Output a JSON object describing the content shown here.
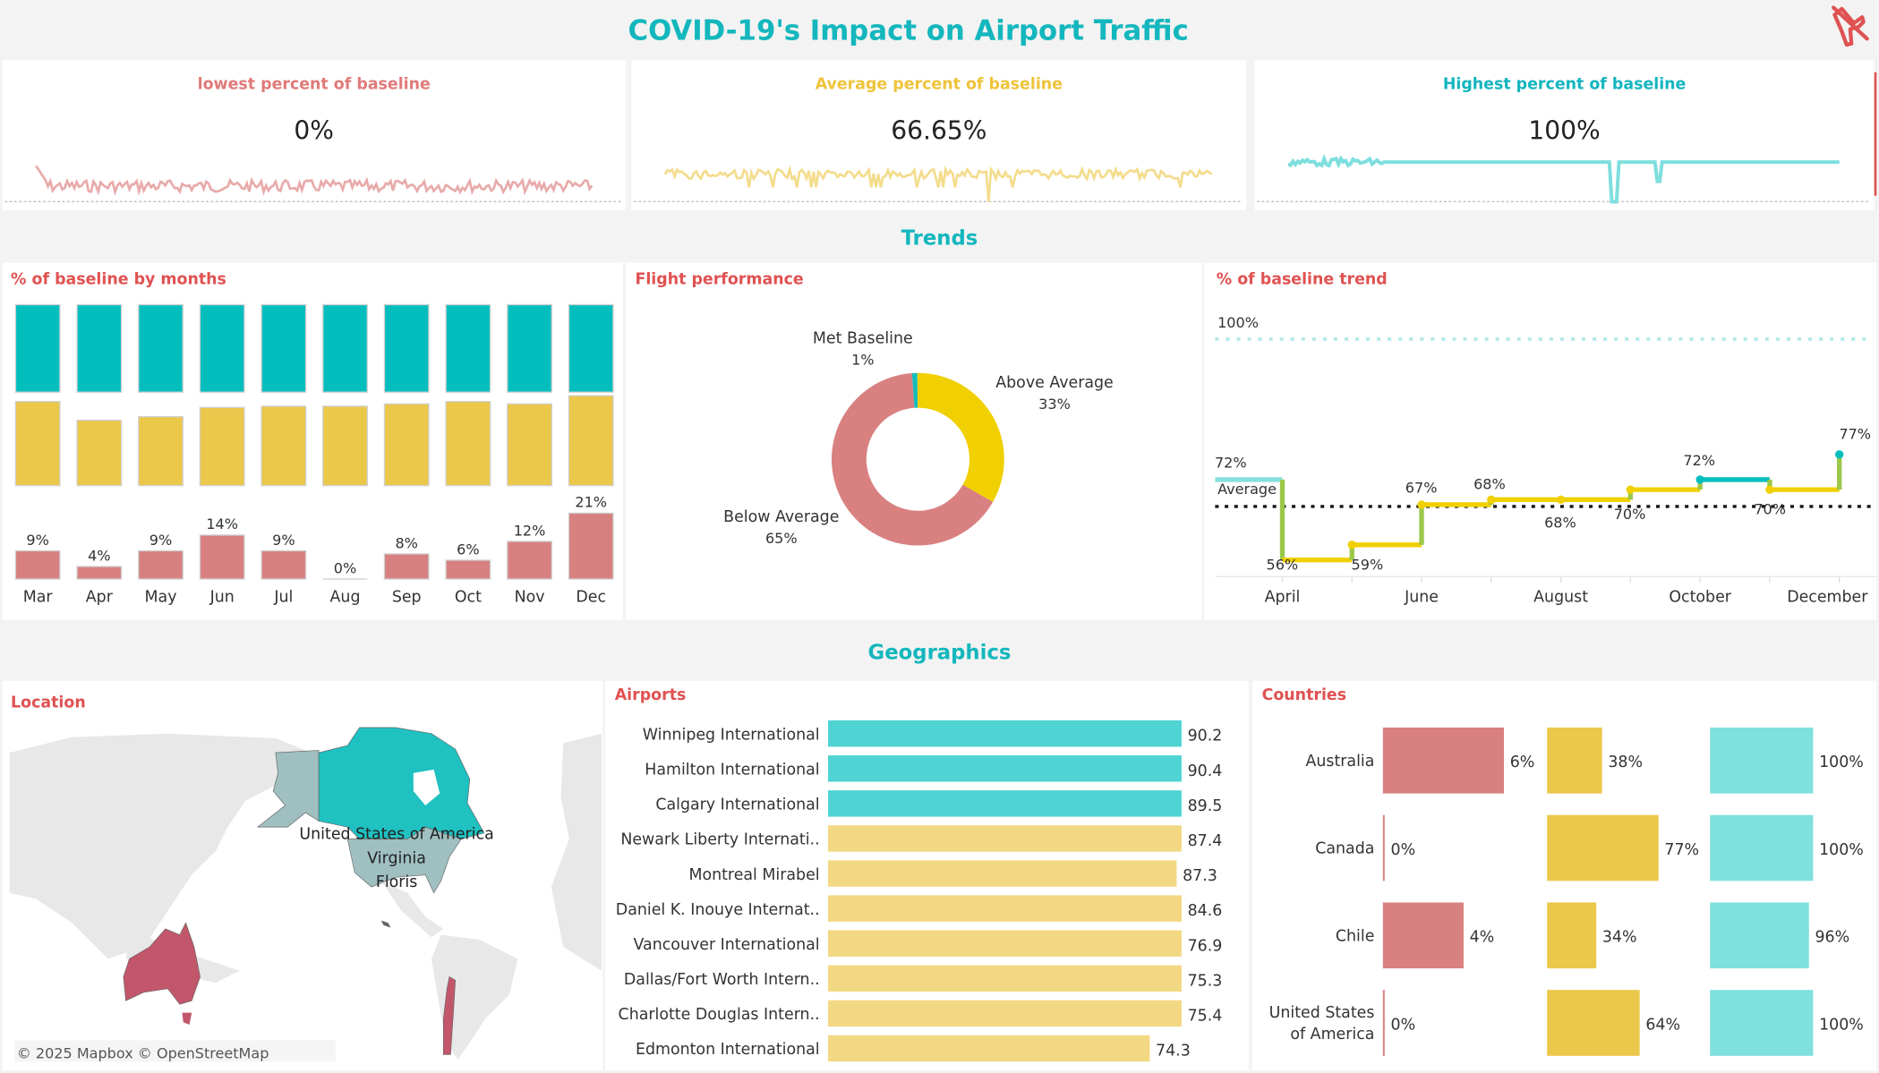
{
  "header": {
    "title": "COVID-19's Impact on Airport Traffic",
    "logo_icon": "no-flight-icon"
  },
  "colors": {
    "teal": "#04bebe",
    "yellow": "#ebc74a",
    "pink": "#d88080",
    "title_red": "#e05252"
  },
  "kpis": [
    {
      "label": "lowest percent of baseline",
      "value": "0%",
      "color": "#e07a7a",
      "line_color": "#e8aaaa"
    },
    {
      "label": "Average percent of baseline",
      "value": "66.65%",
      "color": "#efc33a",
      "line_color": "#f3dc8c"
    },
    {
      "label": "Highest percent of baseline",
      "value": "100%",
      "color": "#13b5bf",
      "line_color": "#7fdede"
    }
  ],
  "sections": {
    "trends": "Trends",
    "geographics": "Geographics"
  },
  "months_chart": {
    "title": "% of baseline by months",
    "chart_data": {
      "type": "bar",
      "categories": [
        "Mar",
        "Apr",
        "May",
        "Jun",
        "Jul",
        "Aug",
        "Sep",
        "Oct",
        "Nov",
        "Dec"
      ],
      "series": [
        {
          "values": [
            100,
            100,
            100,
            100,
            100,
            100,
            100,
            100,
            100,
            100
          ]
        },
        {
          "values": [
            72,
            56,
            59,
            67,
            68,
            68,
            70,
            72,
            70,
            77
          ]
        },
        {
          "values": [
            9,
            4,
            9,
            14,
            9,
            0,
            8,
            6,
            12,
            21
          ],
          "labels": [
            "9%",
            "4%",
            "9%",
            "14%",
            "9%",
            "0%",
            "8%",
            "6%",
            "12%",
            "21%"
          ]
        }
      ]
    }
  },
  "flight_performance": {
    "title": "Flight performance",
    "chart_data": {
      "type": "pie",
      "slices": [
        {
          "name": "Met Baseline",
          "value": 1,
          "label": "1%",
          "color": "#14bcbc"
        },
        {
          "name": "Above Average",
          "value": 33,
          "label": "33%",
          "color": "#f0d000"
        },
        {
          "name": "Below Average",
          "value": 65,
          "label": "65%",
          "color": "#d98080"
        }
      ]
    }
  },
  "trend_chart": {
    "title": "% of baseline trend",
    "chart_data": {
      "type": "line",
      "x": [
        "March",
        "April",
        "May",
        "June",
        "July",
        "August",
        "September",
        "October",
        "November",
        "December"
      ],
      "y": [
        72,
        56,
        59,
        67,
        68,
        68,
        70,
        72,
        70,
        77
      ],
      "point_labels": [
        "72%",
        "56%",
        "59%",
        "67%",
        "68%",
        "68%",
        "70%",
        "72%",
        "70%",
        "77%"
      ],
      "x_tick_labels": [
        "April",
        "June",
        "August",
        "October",
        "December"
      ],
      "reference_lines": [
        {
          "label": "100%",
          "value": 100
        },
        {
          "label": "Average",
          "value": 66.65
        }
      ]
    }
  },
  "location": {
    "title": "Location",
    "labels": [
      "United States of America",
      "Virginia",
      "Floris"
    ],
    "attribution": "© 2025 Mapbox © OpenStreetMap"
  },
  "airports": {
    "title": "Airports",
    "chart_data": {
      "type": "bar",
      "rows": [
        {
          "name": "Winnipeg International",
          "value": "90.2",
          "fill": 1.0,
          "highlight": true
        },
        {
          "name": "Hamilton International",
          "value": "90.4",
          "fill": 1.0,
          "highlight": true
        },
        {
          "name": "Calgary International",
          "value": "89.5",
          "fill": 1.0,
          "highlight": true
        },
        {
          "name": "Newark Liberty Internati..",
          "value": "87.4",
          "fill": 1.0,
          "highlight": false
        },
        {
          "name": "Montreal Mirabel",
          "value": "87.3",
          "fill": 0.986,
          "highlight": false
        },
        {
          "name": "Daniel K. Inouye Internat..",
          "value": "84.6",
          "fill": 1.0,
          "highlight": false
        },
        {
          "name": "Vancouver International",
          "value": "76.9",
          "fill": 1.0,
          "highlight": false
        },
        {
          "name": "Dallas/Fort Worth Intern..",
          "value": "75.3",
          "fill": 1.0,
          "highlight": false
        },
        {
          "name": "Charlotte Douglas Intern..",
          "value": "75.4",
          "fill": 1.0,
          "highlight": false
        },
        {
          "name": "Edmonton International",
          "value": "74.3",
          "fill": 0.91,
          "highlight": false
        }
      ]
    }
  },
  "countries": {
    "title": "Countries",
    "chart_data": {
      "type": "bar",
      "categories": [
        "Australia",
        "Canada",
        "Chile",
        "United States of America"
      ],
      "series": [
        {
          "values": [
            6,
            0,
            4,
            0
          ],
          "labels": [
            "6%",
            "0%",
            "4%",
            "0%"
          ],
          "color": "#d98080"
        },
        {
          "values": [
            38,
            77,
            34,
            64
          ],
          "labels": [
            "38%",
            "77%",
            "34%",
            "64%"
          ],
          "color": "#ebc74a"
        },
        {
          "values": [
            100,
            100,
            96,
            100
          ],
          "labels": [
            "100%",
            "100%",
            "96%",
            "100%"
          ],
          "color": "#7fe0de"
        }
      ]
    }
  }
}
